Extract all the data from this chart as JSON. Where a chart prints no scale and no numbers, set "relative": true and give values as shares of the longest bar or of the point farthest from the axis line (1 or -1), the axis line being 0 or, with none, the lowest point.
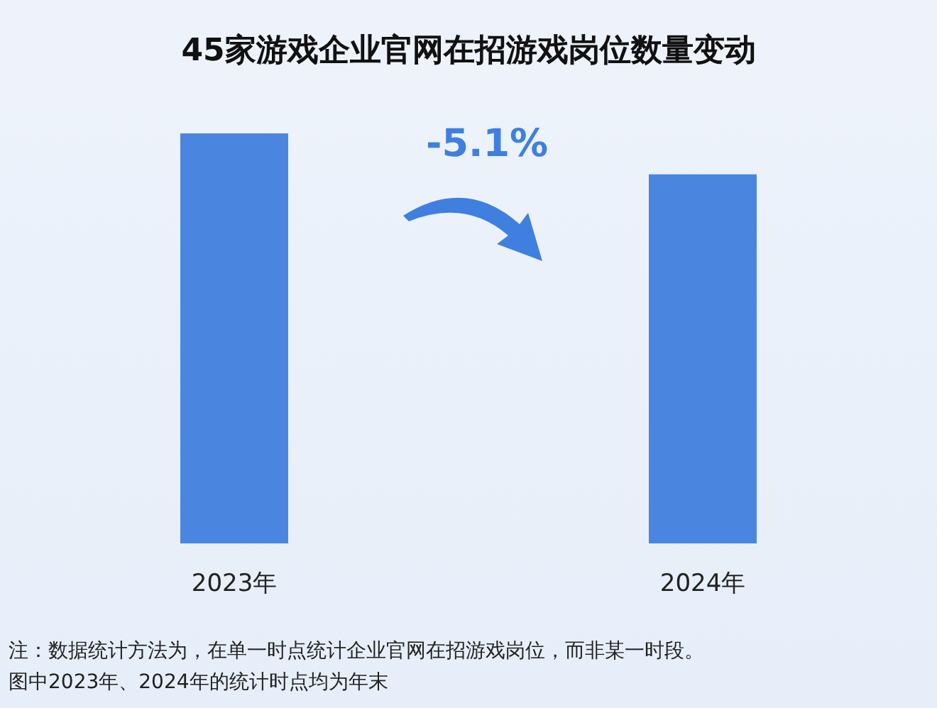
{
  "chart_data": {
    "type": "bar",
    "title": "45家游戏企业官网在招游戏岗位数量变动",
    "categories": [
      "2023年",
      "2024年"
    ],
    "values": [
      1,
      0.9
    ],
    "color": "#4a86e0",
    "relative": true,
    "annotations": [
      "-5.1%",
      "注：数据统计方法为，在单一时点统计企业官网在招游戏岗位，而非某一时段。",
      "图中2023年、2024年的统计时点均为年末"
    ]
  }
}
